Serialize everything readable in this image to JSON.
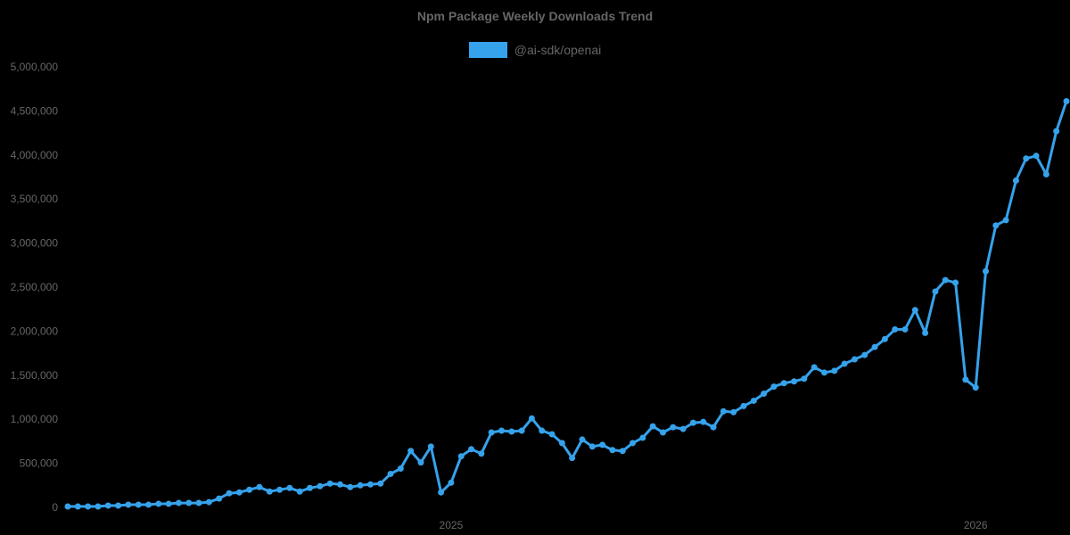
{
  "chart_data": {
    "type": "line",
    "title": "Npm Package Weekly Downloads Trend",
    "xlabel": "",
    "ylabel": "",
    "ylim": [
      0,
      5000000
    ],
    "grid": false,
    "legend_position": "top",
    "y_ticks": [
      0,
      500000,
      1000000,
      1500000,
      2000000,
      2500000,
      3000000,
      3500000,
      4000000,
      4500000,
      5000000
    ],
    "y_tick_labels": [
      "0",
      "500,000",
      "1,000,000",
      "1,500,000",
      "2,000,000",
      "2,500,000",
      "3,000,000",
      "3,500,000",
      "4,000,000",
      "4,500,000",
      "5,000,000"
    ],
    "x_tick_labels": [
      {
        "label": "2025",
        "index": 38
      },
      {
        "label": "2026",
        "index": 90
      }
    ],
    "series": [
      {
        "name": "@ai-sdk/openai",
        "color": "#36a2eb",
        "values": [
          10000,
          10000,
          10000,
          10000,
          20000,
          20000,
          30000,
          30000,
          30000,
          40000,
          40000,
          50000,
          50000,
          50000,
          60000,
          100000,
          160000,
          170000,
          200000,
          230000,
          180000,
          200000,
          220000,
          180000,
          220000,
          240000,
          270000,
          260000,
          230000,
          250000,
          260000,
          270000,
          380000,
          440000,
          640000,
          510000,
          690000,
          170000,
          280000,
          580000,
          660000,
          610000,
          850000,
          870000,
          860000,
          870000,
          1010000,
          870000,
          830000,
          730000,
          560000,
          770000,
          690000,
          710000,
          650000,
          640000,
          730000,
          790000,
          920000,
          850000,
          910000,
          890000,
          960000,
          970000,
          910000,
          1090000,
          1080000,
          1150000,
          1210000,
          1290000,
          1370000,
          1410000,
          1430000,
          1460000,
          1590000,
          1530000,
          1550000,
          1630000,
          1680000,
          1730000,
          1820000,
          1910000,
          2020000,
          2020000,
          2240000,
          1980000,
          2450000,
          2580000,
          2550000,
          1450000,
          1360000,
          2680000,
          3200000,
          3260000,
          3710000,
          3960000,
          3990000,
          3780000,
          4270000,
          4610000
        ]
      }
    ]
  }
}
